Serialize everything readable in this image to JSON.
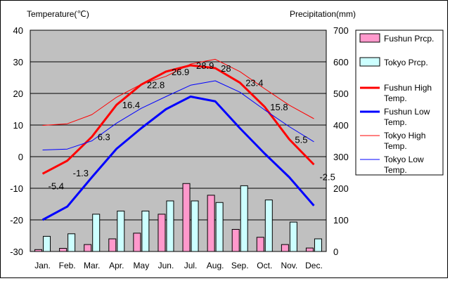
{
  "chart_data": {
    "type": "bar+line",
    "left_axis_title": "Temperature(℃)",
    "right_axis_title": "Precipitation(mm)",
    "categories": [
      "Jan.",
      "Feb.",
      "Mar.",
      "Apr.",
      "May",
      "Jun.",
      "Jul.",
      "Aug.",
      "Sep.",
      "Oct.",
      "Nov.",
      "Dec."
    ],
    "left_axis": {
      "range": [
        -30,
        40
      ],
      "ticks": [
        "40",
        "30",
        "20",
        "10",
        "0",
        "-10",
        "-20",
        "-30"
      ]
    },
    "right_axis": {
      "range": [
        0,
        700
      ],
      "ticks": [
        "700",
        "600",
        "500",
        "400",
        "300",
        "200",
        "100",
        "0"
      ]
    },
    "grid": true,
    "plot_background": "#c0c0c0",
    "legend_position": "right",
    "bar_series": [
      {
        "name": "Fushun Prcp.",
        "color": "#ff99cc",
        "values": [
          6,
          10,
          22,
          40,
          58,
          118,
          215,
          178,
          70,
          45,
          22,
          11
        ]
      },
      {
        "name": "Tokyo Prcp.",
        "color": "#ccffff",
        "values": [
          48,
          56,
          118,
          128,
          128,
          160,
          160,
          155,
          208,
          163,
          93,
          40
        ]
      }
    ],
    "line_series": [
      {
        "name": "Fushun High Temp.",
        "color": "#ff0000",
        "width": 3,
        "values": [
          -5.4,
          -1.3,
          6.3,
          16.4,
          22.8,
          26.9,
          28.9,
          28,
          23.4,
          15.8,
          5.5,
          -2.5
        ]
      },
      {
        "name": "Fushun Low Temp.",
        "color": "#0000ff",
        "width": 3,
        "values": [
          -20,
          -15.8,
          -6.5,
          2.5,
          9,
          15,
          19,
          17.5,
          9,
          1,
          -6.5,
          -15.5
        ]
      },
      {
        "name": "Tokyo High Temp.",
        "color": "#ff0000",
        "width": 1,
        "values": [
          9.9,
          10.4,
          13.3,
          18.8,
          22.9,
          25.4,
          29.3,
          30.8,
          26.9,
          21.5,
          16.3,
          12
        ]
      },
      {
        "name": "Tokyo Low Temp.",
        "color": "#0000ff",
        "width": 1,
        "values": [
          2.1,
          2.4,
          5,
          10.6,
          15.3,
          19,
          22.6,
          24,
          20.4,
          14.8,
          9.5,
          4.7
        ]
      }
    ],
    "data_labels": [
      "-5.4",
      "-1.3",
      "6.3",
      "16.4",
      "22.8",
      "26.9",
      "28.9",
      "28",
      "23.4",
      "15.8",
      "5.5",
      "-2.5"
    ]
  }
}
